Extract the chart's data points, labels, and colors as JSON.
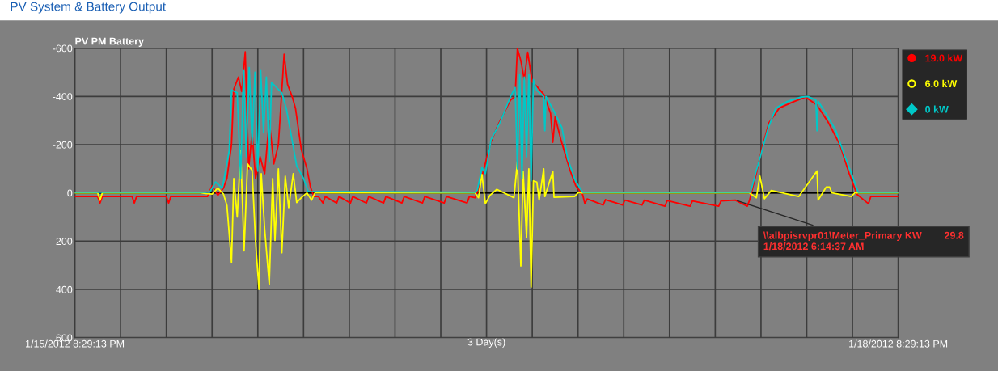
{
  "chart_data": {
    "type": "line",
    "title": "PV System & Battery Output",
    "subtitle": "PV PM Battery",
    "xlabel": "3 Day(s)",
    "xlim": [
      "2012-01-15T20:29",
      "2012-01-18T20:29"
    ],
    "ylim": [
      600,
      -600
    ],
    "xticks": [
      {
        "value": "2012-01-15T20:29",
        "label": "1/15/2012 8:29:13 PM"
      },
      {
        "value": "2012-01-16T00:29",
        "label": null
      },
      {
        "value": "2012-01-16T04:29",
        "label": null
      },
      {
        "value": "2012-01-16T08:29",
        "label": null
      },
      {
        "value": "2012-01-16T12:29",
        "label": null
      },
      {
        "value": "2012-01-16T16:29",
        "label": null
      },
      {
        "value": "2012-01-16T20:29",
        "label": null
      },
      {
        "value": "2012-01-17T00:29",
        "label": null
      },
      {
        "value": "2012-01-17T04:29",
        "label": null
      },
      {
        "value": "2012-01-17T08:29",
        "label": null
      },
      {
        "value": "2012-01-17T12:29",
        "label": null
      },
      {
        "value": "2012-01-17T16:29",
        "label": null
      },
      {
        "value": "2012-01-17T20:29",
        "label": null
      },
      {
        "value": "2012-01-18T00:29",
        "label": null
      },
      {
        "value": "2012-01-18T04:29",
        "label": null
      },
      {
        "value": "2012-01-18T08:29",
        "label": null
      },
      {
        "value": "2012-01-18T12:29",
        "label": null
      },
      {
        "value": "2012-01-18T16:29",
        "label": null
      },
      {
        "value": "2012-01-18T20:29",
        "label": "1/18/2012 8:29:13 PM"
      }
    ],
    "yticks": [
      -600,
      -400,
      -200,
      0,
      200,
      400,
      600
    ],
    "grid": true,
    "legend": "right",
    "line_style": "solid",
    "ref_lines": [
      {
        "axis": "y",
        "value": 0,
        "color": "#000000"
      }
    ],
    "annotations": [
      {
        "text": "\\\\albpisrvpr01\\Meter_Primary KW        29.8\n1/18/2012 6:14:37 AM",
        "x": "2012-01-18T06:14",
        "y": 29.8
      }
    ],
    "series": [
      {
        "name": "19.0 kW",
        "color": "#ff0000",
        "x": [
          "2012-01-15T20:29",
          "2012-01-15T22:29",
          "2012-01-15T22:41",
          "2012-01-15T22:53",
          "2012-01-16T01:29",
          "2012-01-16T01:41",
          "2012-01-16T01:53",
          "2012-01-16T04:29",
          "2012-01-16T04:41",
          "2012-01-16T04:53",
          "2012-01-16T07:29",
          "2012-01-16T08:05",
          "2012-01-16T08:29",
          "2012-01-16T08:59",
          "2012-01-16T09:29",
          "2012-01-16T09:47",
          "2012-01-16T10:11",
          "2012-01-16T10:23",
          "2012-01-16T10:47",
          "2012-01-16T11:05",
          "2012-01-16T11:23",
          "2012-01-16T11:41",
          "2012-01-16T11:59",
          "2012-01-16T12:17",
          "2012-01-16T12:41",
          "2012-01-16T13:05",
          "2012-01-16T13:29",
          "2012-01-16T13:53",
          "2012-01-16T14:17",
          "2012-01-16T14:47",
          "2012-01-16T15:05",
          "2012-01-16T15:29",
          "2012-01-16T15:47",
          "2012-01-16T16:17",
          "2012-01-16T16:47",
          "2012-01-16T17:05",
          "2012-01-16T17:23",
          "2012-01-16T17:47",
          "2012-01-16T18:11",
          "2012-01-16T18:23",
          "2012-01-16T19:23",
          "2012-01-16T19:35",
          "2012-01-16T20:35",
          "2012-01-16T20:47",
          "2012-01-16T21:59",
          "2012-01-16T22:11",
          "2012-01-16T23:29",
          "2012-01-16T23:41",
          "2012-01-17T01:05",
          "2012-01-17T01:17",
          "2012-01-17T02:53",
          "2012-01-17T03:05",
          "2012-01-17T04:47",
          "2012-01-17T04:59",
          "2012-01-17T06:47",
          "2012-01-17T06:59",
          "2012-01-17T07:29",
          "2012-01-17T07:53",
          "2012-01-17T08:17",
          "2012-01-17T08:53",
          "2012-01-17T09:29",
          "2012-01-17T10:35",
          "2012-01-17T10:59",
          "2012-01-17T11:11",
          "2012-01-17T11:29",
          "2012-01-17T11:47",
          "2012-01-17T12:05",
          "2012-01-17T12:29",
          "2012-01-17T12:53",
          "2012-01-17T13:29",
          "2012-01-17T14:05",
          "2012-01-17T14:17",
          "2012-01-17T14:29",
          "2012-01-17T14:59",
          "2012-01-17T15:47",
          "2012-01-17T16:17",
          "2012-01-17T16:53",
          "2012-01-17T17:05",
          "2012-01-17T17:17",
          "2012-01-17T18:41",
          "2012-01-17T18:53",
          "2012-01-17T20:23",
          "2012-01-17T20:35",
          "2012-01-17T22:05",
          "2012-01-17T22:17",
          "2012-01-18T00:05",
          "2012-01-18T00:17",
          "2012-01-18T02:17",
          "2012-01-18T02:29",
          "2012-01-18T04:47",
          "2012-01-18T04:59",
          "2012-01-18T06:14",
          "2012-01-18T07:17",
          "2012-01-18T07:29",
          "2012-01-18T08:05",
          "2012-01-18T08:35",
          "2012-01-18T09:11",
          "2012-01-18T10:05",
          "2012-01-18T11:23",
          "2012-01-18T12:23",
          "2012-01-18T13:23",
          "2012-01-18T14:23",
          "2012-01-18T15:23",
          "2012-01-18T16:11",
          "2012-01-18T16:53",
          "2012-01-18T17:53",
          "2012-01-18T18:05",
          "2012-01-18T20:29"
        ],
        "values": [
          15,
          15,
          42,
          15,
          15,
          42,
          15,
          15,
          42,
          15,
          15,
          15,
          -30,
          10,
          -20,
          -60,
          -200,
          -430,
          -480,
          -420,
          -585,
          -100,
          -250,
          -60,
          -150,
          -80,
          -300,
          -120,
          -200,
          -575,
          -450,
          -400,
          -350,
          -180,
          -100,
          -25,
          15,
          15,
          42,
          15,
          42,
          15,
          42,
          15,
          42,
          15,
          42,
          15,
          42,
          15,
          42,
          15,
          42,
          15,
          42,
          15,
          20,
          -30,
          -106,
          -212,
          -282,
          -385,
          -400,
          -600,
          -548,
          -470,
          -583,
          -460,
          -442,
          -409,
          -330,
          -210,
          -315,
          -221,
          -94,
          -30,
          6,
          45,
          25,
          50,
          28,
          50,
          30,
          50,
          30,
          55,
          32,
          55,
          33,
          55,
          33,
          29.8,
          55,
          30,
          -82,
          -188,
          -291,
          -352,
          -379,
          -397,
          -364,
          -291,
          -200,
          -82,
          6,
          45,
          15,
          15
        ]
      },
      {
        "name": "6.0 kW",
        "color": "#ffff00",
        "x": [
          "2012-01-15T20:29",
          "2012-01-15T22:29",
          "2012-01-15T22:41",
          "2012-01-15T22:53",
          "2012-01-16T07:29",
          "2012-01-16T08:29",
          "2012-01-16T08:59",
          "2012-01-16T09:29",
          "2012-01-16T09:47",
          "2012-01-16T10:11",
          "2012-01-16T10:23",
          "2012-01-16T10:41",
          "2012-01-16T10:59",
          "2012-01-16T11:17",
          "2012-01-16T11:35",
          "2012-01-16T11:59",
          "2012-01-16T12:17",
          "2012-01-16T12:35",
          "2012-01-16T12:47",
          "2012-01-16T13:05",
          "2012-01-16T13:29",
          "2012-01-16T13:47",
          "2012-01-16T13:59",
          "2012-01-16T14:17",
          "2012-01-16T14:35",
          "2012-01-16T14:53",
          "2012-01-16T15:11",
          "2012-01-16T15:35",
          "2012-01-16T15:53",
          "2012-01-16T16:17",
          "2012-01-16T16:47",
          "2012-01-16T17:11",
          "2012-01-16T17:29",
          "2012-01-17T07:29",
          "2012-01-17T07:47",
          "2012-01-17T08:05",
          "2012-01-17T08:23",
          "2012-01-17T08:47",
          "2012-01-17T09:23",
          "2012-01-17T10:53",
          "2012-01-17T11:11",
          "2012-01-17T11:29",
          "2012-01-17T11:41",
          "2012-01-17T11:59",
          "2012-01-17T12:11",
          "2012-01-17T12:23",
          "2012-01-17T12:35",
          "2012-01-17T12:53",
          "2012-01-17T13:05",
          "2012-01-17T13:29",
          "2012-01-17T13:35",
          "2012-01-17T14:17",
          "2012-01-17T14:23",
          "2012-01-17T16:11",
          "2012-01-17T16:29",
          "2012-01-18T07:29",
          "2012-01-18T08:05",
          "2012-01-18T08:23",
          "2012-01-18T08:47",
          "2012-01-18T09:23",
          "2012-01-18T11:47",
          "2012-01-18T13:23",
          "2012-01-18T13:29",
          "2012-01-18T14:11",
          "2012-01-18T14:29",
          "2012-01-18T14:41",
          "2012-01-18T16:23",
          "2012-01-18T16:41",
          "2012-01-18T20:29"
        ],
        "values": [
          0,
          0,
          30,
          0,
          0,
          5,
          -20,
          5,
          52,
          288,
          -60,
          100,
          -176,
          240,
          -120,
          -94,
          200,
          400,
          -80,
          150,
          379,
          -60,
          197,
          -100,
          248,
          -70,
          61,
          -80,
          40,
          20,
          0,
          30,
          0,
          0,
          20,
          -76,
          45,
          10,
          -15,
          20,
          -130,
          303,
          -90,
          185,
          -100,
          390,
          -50,
          -45,
          30,
          -100,
          15,
          -90,
          18,
          15,
          0,
          0,
          20,
          -70,
          24,
          -10,
          15,
          -91,
          30,
          -24,
          -24,
          0,
          15,
          0,
          0
        ]
      },
      {
        "name": "0 kW",
        "color": "#00c8c8",
        "x": [
          "2012-01-15T20:29",
          "2012-01-16T08:17",
          "2012-01-16T08:47",
          "2012-01-16T09:23",
          "2012-01-16T09:59",
          "2012-01-16T10:11",
          "2012-01-16T10:41",
          "2012-01-16T10:59",
          "2012-01-16T11:14",
          "2012-01-16T11:29",
          "2012-01-16T11:44",
          "2012-01-16T11:59",
          "2012-01-16T12:14",
          "2012-01-16T12:29",
          "2012-01-16T12:44",
          "2012-01-16T12:59",
          "2012-01-16T13:14",
          "2012-01-16T13:29",
          "2012-01-16T13:41",
          "2012-01-16T14:35",
          "2012-01-16T14:59",
          "2012-01-16T15:23",
          "2012-01-16T15:53",
          "2012-01-16T16:29",
          "2012-01-16T16:53",
          "2012-01-17T07:29",
          "2012-01-17T07:41",
          "2012-01-17T08:05",
          "2012-01-17T08:23",
          "2012-01-17T08:53",
          "2012-01-17T09:41",
          "2012-01-17T10:35",
          "2012-01-17T10:59",
          "2012-01-17T11:11",
          "2012-01-17T11:23",
          "2012-01-17T11:35",
          "2012-01-17T11:47",
          "2012-01-17T11:59",
          "2012-01-17T12:11",
          "2012-01-17T12:23",
          "2012-01-17T12:35",
          "2012-01-17T12:53",
          "2012-01-17T13:29",
          "2012-01-17T13:35",
          "2012-01-17T13:41",
          "2012-01-17T14:23",
          "2012-01-17T15:05",
          "2012-01-17T15:35",
          "2012-01-17T16:17",
          "2012-01-17T16:53",
          "2012-01-18T07:35",
          "2012-01-18T08:05",
          "2012-01-18T08:29",
          "2012-01-18T09:05",
          "2012-01-18T09:47",
          "2012-01-18T10:47",
          "2012-01-18T11:59",
          "2012-01-18T12:35",
          "2012-01-18T13:17",
          "2012-01-18T13:23",
          "2012-01-18T13:29",
          "2012-01-18T13:59",
          "2012-01-18T14:59",
          "2012-01-18T15:47",
          "2012-01-18T16:29",
          "2012-01-18T16:59",
          "2012-01-18T20:29"
        ],
        "values": [
          -3,
          -3,
          -45,
          -20,
          -176,
          -427,
          -415,
          -60,
          -510,
          -150,
          -520,
          -200,
          -500,
          -90,
          -510,
          -250,
          -480,
          -130,
          -458,
          -415,
          -348,
          -245,
          -112,
          -60,
          -6,
          -3,
          -12,
          -106,
          -80,
          -221,
          -294,
          -400,
          -437,
          -100,
          -491,
          -60,
          -480,
          -150,
          -490,
          -50,
          -470,
          -424,
          -400,
          -258,
          -400,
          -339,
          -270,
          -141,
          -48,
          -3,
          -3,
          -94,
          -160,
          -264,
          -352,
          -379,
          -397,
          -400,
          -385,
          -258,
          -380,
          -343,
          -264,
          -156,
          -70,
          -3,
          -3
        ]
      }
    ]
  }
}
